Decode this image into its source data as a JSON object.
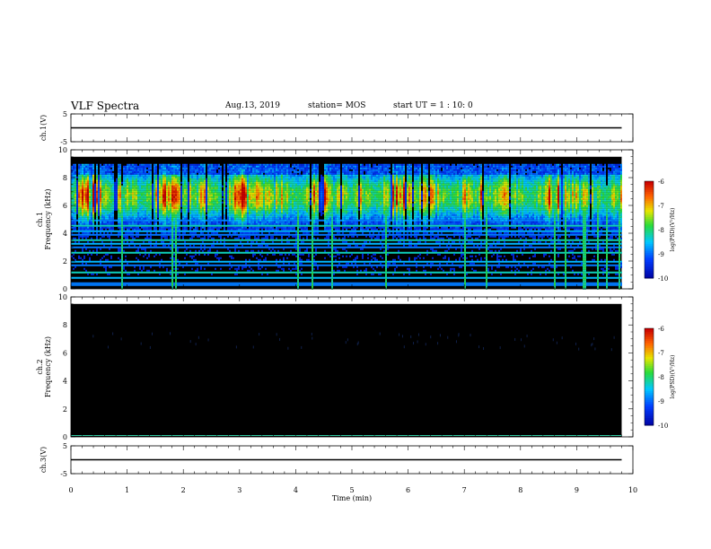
{
  "header": {
    "title": "VLF Spectra",
    "date": "Aug.13, 2019",
    "station": "station= MOS",
    "start": "start  UT =  1 : 10: 0"
  },
  "chart_data": [
    {
      "type": "line",
      "panel": "ch1-voltage",
      "ylabel": "ch.1(V)",
      "ylim": [
        -5,
        5
      ],
      "yticks": [
        -5,
        5
      ],
      "x": [
        0,
        9.8
      ],
      "y": [
        0,
        0
      ]
    },
    {
      "type": "heatmap",
      "panel": "ch1-spectrogram",
      "ylabel": "ch.1\nFrequency (kHz)",
      "ylim": [
        0,
        10
      ],
      "yticks": [
        0,
        2,
        4,
        6,
        8,
        10
      ],
      "x_range_min": [
        0,
        9.8
      ],
      "frequency_band_khz": [
        0,
        9.5
      ],
      "peak_emission_band_khz": [
        5.5,
        8
      ],
      "colorbar": {
        "label": "log(PSD)(V²/Hz)",
        "ticks": [
          -10,
          -9,
          -8,
          -7,
          -6
        ]
      }
    },
    {
      "type": "heatmap",
      "panel": "ch2-spectrogram",
      "ylabel": "ch.2\nFrequency (kHz)",
      "ylim": [
        0,
        10
      ],
      "yticks": [
        0,
        2,
        4,
        6,
        8,
        10
      ],
      "x_range_min": [
        0,
        9.8
      ],
      "frequency_band_khz": [
        0,
        9.5
      ],
      "colorbar": {
        "label": "log(PSD)(V²/Hz)",
        "ticks": [
          -10,
          -9,
          -8,
          -7,
          -6
        ]
      }
    },
    {
      "type": "line",
      "panel": "ch3-voltage",
      "ylabel": "ch.3(V)",
      "ylim": [
        -5,
        5
      ],
      "yticks": [
        -5,
        5
      ],
      "x": [
        0,
        9.8
      ],
      "y": [
        0,
        0
      ]
    }
  ],
  "xaxis": {
    "label": "Time  (min)",
    "range": [
      0,
      10
    ],
    "ticks": [
      "0",
      "1",
      "2",
      "3",
      "4",
      "5",
      "6",
      "7",
      "8",
      "9",
      "10"
    ]
  },
  "colors": {
    "background": "#ffffff",
    "axes": "#000000",
    "spectrogram_background": "#000000"
  }
}
